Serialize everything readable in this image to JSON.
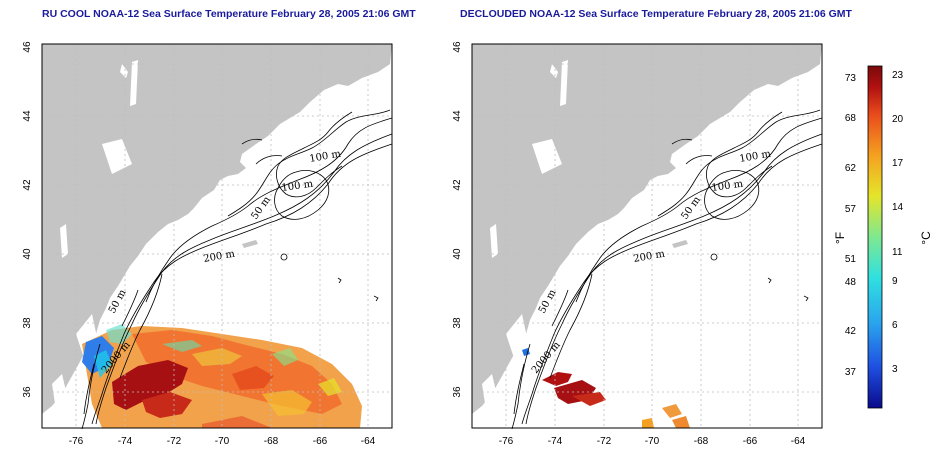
{
  "titles": {
    "left": "RU COOL NOAA-12 Sea Surface Temperature February 28, 2005 21:06 GMT",
    "right": "DECLOUDED NOAA-12 Sea Surface Temperature February 28, 2005 21:06 GMT"
  },
  "axes": {
    "x_ticks": [
      "-76",
      "-74",
      "-72",
      "-70",
      "-68",
      "-66",
      "-64"
    ],
    "y_ticks": [
      "36",
      "38",
      "40",
      "42",
      "44",
      "46"
    ]
  },
  "contour_labels": [
    "100 m",
    "100 m",
    "50 m",
    "200 m",
    "50 m",
    "2000 m"
  ],
  "colorbar": {
    "fahrenheit_label": "°F",
    "celsius_label": "°C",
    "fahrenheit_ticks": [
      "73",
      "68",
      "62",
      "57",
      "51",
      "48",
      "42",
      "37"
    ],
    "celsius_ticks": [
      "23",
      "20",
      "17",
      "14",
      "11",
      "9",
      "6",
      "3"
    ],
    "colors": [
      "#0a0a8c",
      "#1f4fe0",
      "#2aa5ee",
      "#2fe0e0",
      "#7fe890",
      "#e5e52a",
      "#f5a020",
      "#e84a1c",
      "#b01010",
      "#7a0a0a"
    ]
  },
  "colors": {
    "land": "#c4c4c4",
    "title": "#1a1a9c",
    "grid": "#bdbdbd"
  }
}
